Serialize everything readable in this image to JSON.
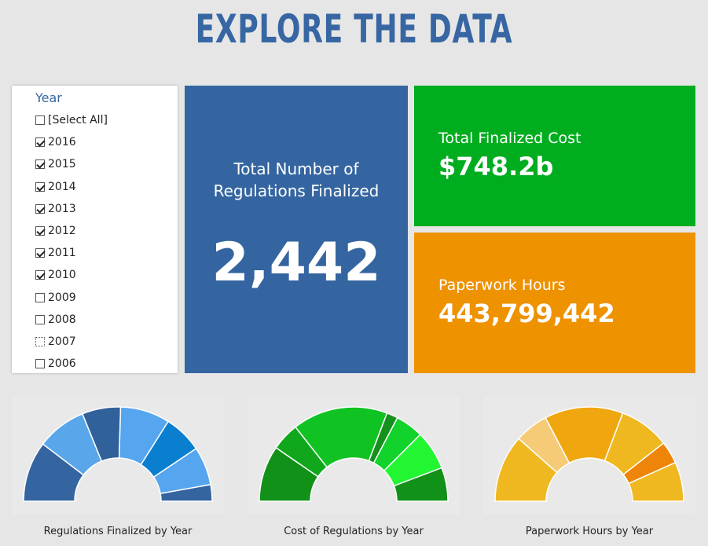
{
  "header": {
    "title": "EXPLORE THE DATA"
  },
  "filter": {
    "title": "Year",
    "items": [
      {
        "label": "[Select All]",
        "checked": false
      },
      {
        "label": "2016",
        "checked": true
      },
      {
        "label": "2015",
        "checked": true
      },
      {
        "label": "2014",
        "checked": true
      },
      {
        "label": "2013",
        "checked": true
      },
      {
        "label": "2012",
        "checked": true
      },
      {
        "label": "2011",
        "checked": true
      },
      {
        "label": "2010",
        "checked": true
      },
      {
        "label": "2009",
        "checked": false
      },
      {
        "label": "2008",
        "checked": false
      },
      {
        "label": "2007",
        "checked": false,
        "focused": true
      },
      {
        "label": "2006",
        "checked": false
      }
    ]
  },
  "kpis": {
    "regulations": {
      "label": "Total Number of Regulations Finalized",
      "value": "2,442",
      "color": "#3465a0"
    },
    "cost": {
      "label": "Total Finalized Cost",
      "value": "$748.2b",
      "color": "#00ad1f"
    },
    "hours": {
      "label": "Paperwork Hours",
      "value": "443,799,442",
      "color": "#ef9200"
    }
  },
  "chart_data": [
    {
      "type": "pie",
      "title": "Regulations Finalized by Year",
      "style": "half-donut",
      "values": [
        22,
        18,
        14,
        18,
        14,
        14,
        6
      ],
      "colors": [
        "#3465a0",
        "#5aa6ea",
        "#30619b",
        "#55a6ef",
        "#0b7fcf",
        "#55a6ef",
        "#3465a0"
      ]
    },
    {
      "type": "pie",
      "title": "Cost of Regulations by Year",
      "style": "half-donut",
      "values": [
        20,
        10,
        34,
        4,
        10,
        14,
        12
      ],
      "colors": [
        "#119117",
        "#11a71c",
        "#11c322",
        "#14901c",
        "#11d32b",
        "#22f532",
        "#119117"
      ]
    },
    {
      "type": "pie",
      "title": "Paperwork Hours by Year",
      "style": "half-donut",
      "values": [
        24,
        12,
        28,
        18,
        8,
        14
      ],
      "colors": [
        "#f0b820",
        "#f6cb78",
        "#f0a70f",
        "#f0b820",
        "#ee8509",
        "#f0b820"
      ]
    }
  ]
}
